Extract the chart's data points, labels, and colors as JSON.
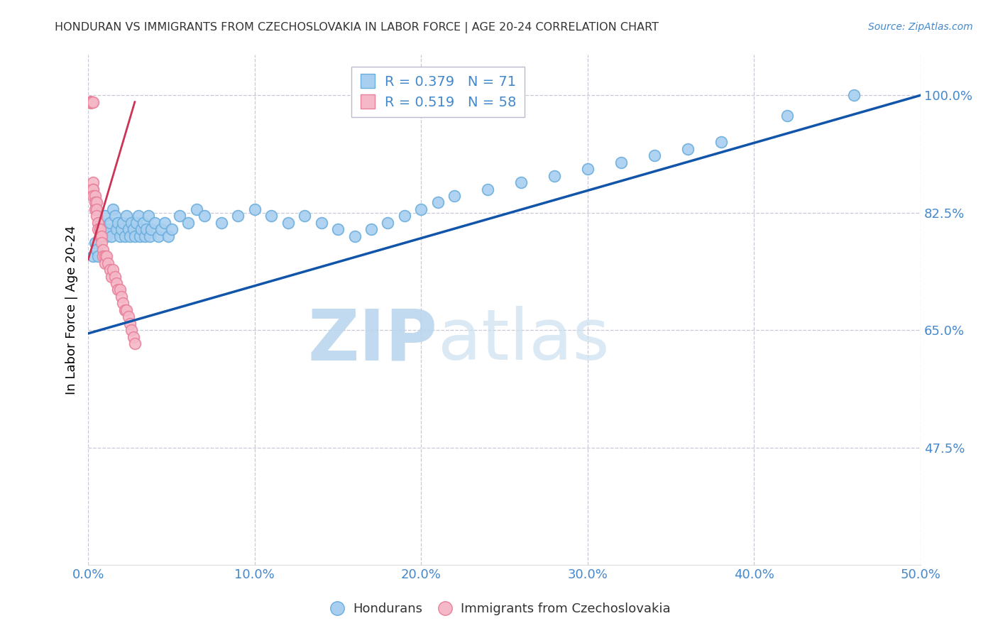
{
  "title": "HONDURAN VS IMMIGRANTS FROM CZECHOSLOVAKIA IN LABOR FORCE | AGE 20-24 CORRELATION CHART",
  "source": "Source: ZipAtlas.com",
  "ylabel": "In Labor Force | Age 20-24",
  "xlim": [
    0.0,
    0.5
  ],
  "ylim": [
    0.3,
    1.06
  ],
  "xticks": [
    0.0,
    0.1,
    0.2,
    0.3,
    0.4,
    0.5
  ],
  "xticklabels": [
    "0.0%",
    "10.0%",
    "20.0%",
    "30.0%",
    "40.0%",
    "50.0%"
  ],
  "yticks": [
    0.475,
    0.65,
    0.825,
    1.0
  ],
  "yticklabels": [
    "47.5%",
    "65.0%",
    "82.5%",
    "100.0%"
  ],
  "blue_color": "#A8CFF0",
  "blue_edge_color": "#6AAEDD",
  "pink_color": "#F5B8C8",
  "pink_edge_color": "#E8829A",
  "line_blue_color": "#1155AA",
  "line_pink_color": "#CC3355",
  "legend_blue_r": "R = 0.379",
  "legend_blue_n": "N = 71",
  "legend_pink_r": "R = 0.519",
  "legend_pink_n": "N = 58",
  "watermark_zip": "ZIP",
  "watermark_atlas": "atlas",
  "grid_color": "#BBBBCC",
  "title_color": "#333333",
  "axis_color": "#4488CC",
  "blue_x": [
    0.003,
    0.004,
    0.005,
    0.006,
    0.007,
    0.008,
    0.009,
    0.01,
    0.011,
    0.012,
    0.013,
    0.014,
    0.015,
    0.016,
    0.017,
    0.018,
    0.019,
    0.02,
    0.021,
    0.022,
    0.023,
    0.024,
    0.025,
    0.026,
    0.027,
    0.028,
    0.029,
    0.03,
    0.031,
    0.032,
    0.033,
    0.034,
    0.035,
    0.036,
    0.037,
    0.038,
    0.04,
    0.042,
    0.044,
    0.046,
    0.048,
    0.05,
    0.055,
    0.06,
    0.065,
    0.07,
    0.08,
    0.09,
    0.1,
    0.11,
    0.12,
    0.13,
    0.14,
    0.15,
    0.16,
    0.17,
    0.18,
    0.19,
    0.2,
    0.21,
    0.22,
    0.24,
    0.26,
    0.28,
    0.3,
    0.32,
    0.34,
    0.36,
    0.38,
    0.42,
    0.46
  ],
  "blue_y": [
    0.76,
    0.78,
    0.77,
    0.76,
    0.81,
    0.79,
    0.8,
    0.82,
    0.79,
    0.8,
    0.81,
    0.79,
    0.83,
    0.82,
    0.8,
    0.81,
    0.79,
    0.8,
    0.81,
    0.79,
    0.82,
    0.8,
    0.79,
    0.81,
    0.8,
    0.79,
    0.81,
    0.82,
    0.79,
    0.8,
    0.81,
    0.79,
    0.8,
    0.82,
    0.79,
    0.8,
    0.81,
    0.79,
    0.8,
    0.81,
    0.79,
    0.8,
    0.82,
    0.81,
    0.83,
    0.82,
    0.81,
    0.82,
    0.83,
    0.82,
    0.81,
    0.82,
    0.81,
    0.8,
    0.79,
    0.8,
    0.81,
    0.82,
    0.83,
    0.84,
    0.85,
    0.86,
    0.87,
    0.88,
    0.89,
    0.9,
    0.91,
    0.92,
    0.93,
    0.97,
    1.0
  ],
  "pink_x": [
    0.001,
    0.001,
    0.001,
    0.001,
    0.001,
    0.001,
    0.001,
    0.001,
    0.001,
    0.001,
    0.001,
    0.002,
    0.002,
    0.002,
    0.002,
    0.002,
    0.002,
    0.002,
    0.002,
    0.003,
    0.003,
    0.003,
    0.003,
    0.003,
    0.004,
    0.004,
    0.004,
    0.005,
    0.005,
    0.005,
    0.006,
    0.006,
    0.007,
    0.007,
    0.008,
    0.008,
    0.009,
    0.009,
    0.01,
    0.01,
    0.011,
    0.012,
    0.013,
    0.014,
    0.015,
    0.016,
    0.017,
    0.018,
    0.019,
    0.02,
    0.021,
    0.022,
    0.023,
    0.024,
    0.025,
    0.026,
    0.027,
    0.028
  ],
  "pink_y": [
    0.99,
    0.99,
    0.99,
    0.99,
    0.99,
    0.99,
    0.99,
    0.99,
    0.99,
    0.99,
    0.99,
    0.99,
    0.99,
    0.99,
    0.99,
    0.99,
    0.99,
    0.99,
    0.99,
    0.99,
    0.87,
    0.86,
    0.86,
    0.85,
    0.85,
    0.84,
    0.83,
    0.84,
    0.83,
    0.82,
    0.81,
    0.8,
    0.79,
    0.8,
    0.79,
    0.78,
    0.77,
    0.76,
    0.76,
    0.75,
    0.76,
    0.75,
    0.74,
    0.73,
    0.74,
    0.73,
    0.72,
    0.71,
    0.71,
    0.7,
    0.69,
    0.68,
    0.68,
    0.67,
    0.66,
    0.65,
    0.64,
    0.63
  ],
  "blue_line_x": [
    0.0,
    0.5
  ],
  "blue_line_y": [
    0.645,
    1.0
  ],
  "pink_line_x": [
    0.0,
    0.028
  ],
  "pink_line_y": [
    0.755,
    0.99
  ]
}
